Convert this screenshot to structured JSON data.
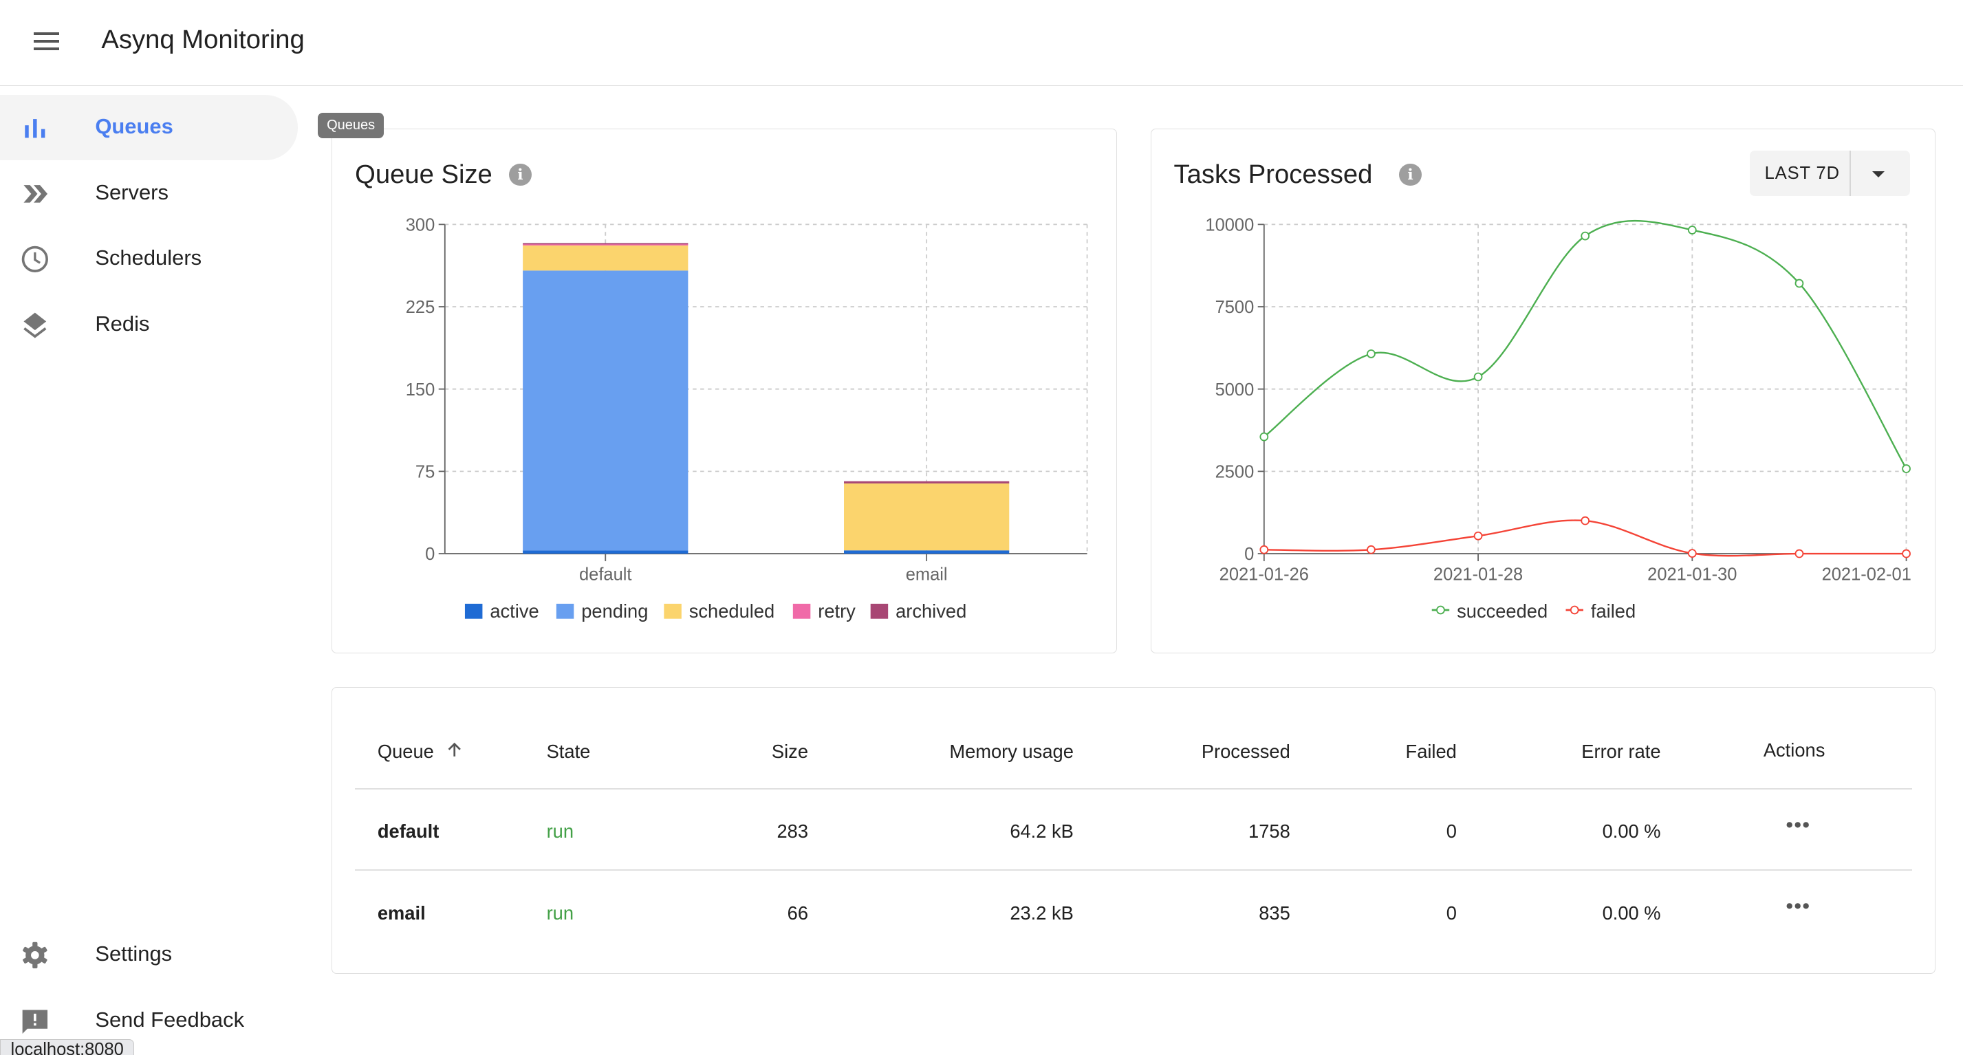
{
  "app": {
    "title": "Asynq Monitoring"
  },
  "sidebar": {
    "items": [
      {
        "label": "Queues",
        "icon": "bar-chart-icon",
        "active": true
      },
      {
        "label": "Servers",
        "icon": "double-chevron-icon"
      },
      {
        "label": "Schedulers",
        "icon": "clock-icon"
      },
      {
        "label": "Redis",
        "icon": "layers-icon"
      },
      {
        "label": "Settings",
        "icon": "gear-icon"
      },
      {
        "label": "Send Feedback",
        "icon": "feedback-icon"
      }
    ],
    "tooltip": "Queues"
  },
  "queue_size_card": {
    "title": "Queue Size"
  },
  "tasks_card": {
    "title": "Tasks Processed",
    "range_label": "LAST 7D"
  },
  "chart_data": [
    {
      "type": "bar",
      "stacked": true,
      "categories": [
        "default",
        "email"
      ],
      "series": [
        {
          "name": "active",
          "values": [
            3,
            3
          ],
          "color": "#1f6bd4"
        },
        {
          "name": "pending",
          "values": [
            255,
            0
          ],
          "color": "#689ff0"
        },
        {
          "name": "scheduled",
          "values": [
            23,
            61
          ],
          "color": "#fbd46d"
        },
        {
          "name": "retry",
          "values": [
            1,
            0
          ],
          "color": "#f06aa8"
        },
        {
          "name": "archived",
          "values": [
            1,
            2
          ],
          "color": "#a84774"
        }
      ],
      "yticks": [
        "0",
        "75",
        "150",
        "225",
        "300"
      ],
      "ylim": [
        0,
        300
      ],
      "grid": true,
      "legend": "bottom"
    },
    {
      "type": "line",
      "x": [
        "2021-01-26",
        "2021-01-27",
        "2021-01-28",
        "2021-01-29",
        "2021-01-30",
        "2021-01-31",
        "2021-02-01"
      ],
      "xticks": [
        "2021-01-26",
        "2021-01-28",
        "2021-01-30",
        "2021-02-01"
      ],
      "series": [
        {
          "name": "succeeded",
          "values": [
            3550,
            6070,
            5370,
            9650,
            9830,
            8210,
            2580
          ],
          "color": "#4caf50"
        },
        {
          "name": "failed",
          "values": [
            120,
            120,
            540,
            1000,
            10,
            0,
            0
          ],
          "color": "#f44336"
        }
      ],
      "yticks": [
        "0",
        "2500",
        "5000",
        "7500",
        "10000"
      ],
      "ylim": [
        0,
        10000
      ],
      "grid": true,
      "legend": "bottom"
    }
  ],
  "table": {
    "headers": [
      "Queue",
      "State",
      "Size",
      "Memory usage",
      "Processed",
      "Failed",
      "Error rate",
      "Actions"
    ],
    "sort": "ascending",
    "rows": [
      {
        "queue": "default",
        "state": "run",
        "size": "283",
        "memory": "64.2 kB",
        "processed": "1758",
        "failed": "0",
        "error_rate": "0.00 %"
      },
      {
        "queue": "email",
        "state": "run",
        "size": "66",
        "memory": "23.2 kB",
        "processed": "835",
        "failed": "0",
        "error_rate": "0.00 %"
      }
    ],
    "state_color": "#43a047"
  },
  "status_bar": {
    "url": "localhost:8080"
  }
}
